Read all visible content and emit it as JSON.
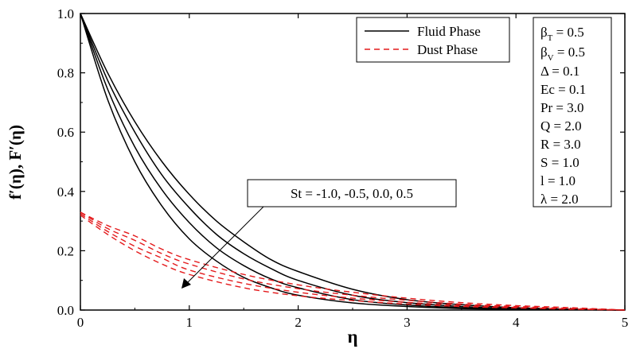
{
  "chart_data": {
    "type": "line",
    "xlabel": "η",
    "ylabel": "f′(η), F′(η)",
    "xlim": [
      0,
      5
    ],
    "ylim": [
      0,
      1.0
    ],
    "x_ticks": [
      "0",
      "1",
      "2",
      "3",
      "4",
      "5"
    ],
    "y_ticks": [
      "0.0",
      "0.2",
      "0.4",
      "0.6",
      "0.8",
      "1.0"
    ],
    "grid": false,
    "legend": {
      "position": "top-right",
      "entries": [
        {
          "label": "Fluid Phase",
          "style": "solid",
          "color": "#000000"
        },
        {
          "label": "Dust Phase",
          "style": "dashed",
          "color": "#e41a1c"
        }
      ]
    },
    "parameters": [
      "β_T = 0.5",
      "β_V = 0.5",
      "Δ = 0.1",
      "Ec = 0.1",
      "Pr = 3.0",
      "Q = 2.0",
      "R = 3.0",
      "S = 1.0",
      "l = 1.0",
      "λ = 2.0"
    ],
    "annotation": {
      "text": "St = -1.0, -0.5, 0.0, 0.5",
      "arrow": "pointing toward decreasing curves"
    },
    "series": [
      {
        "phase": "fluid",
        "x": [
          0,
          0.25,
          0.5,
          0.75,
          1,
          1.25,
          1.5,
          1.75,
          2,
          2.5,
          3,
          3.5,
          4,
          4.5,
          5
        ],
        "y": [
          1.0,
          0.8,
          0.635,
          0.5,
          0.39,
          0.3,
          0.23,
          0.17,
          0.13,
          0.07,
          0.035,
          0.018,
          0.008,
          0.003,
          0.0
        ]
      },
      {
        "phase": "fluid",
        "x": [
          0,
          0.25,
          0.5,
          0.75,
          1,
          1.25,
          1.5,
          1.75,
          2,
          2.5,
          3,
          3.5,
          4,
          4.5,
          5
        ],
        "y": [
          1.0,
          0.775,
          0.6,
          0.455,
          0.345,
          0.255,
          0.19,
          0.14,
          0.1,
          0.05,
          0.025,
          0.012,
          0.005,
          0.002,
          0.0
        ]
      },
      {
        "phase": "fluid",
        "x": [
          0,
          0.25,
          0.5,
          0.75,
          1,
          1.25,
          1.5,
          1.75,
          2,
          2.5,
          3,
          3.5,
          4,
          4.5,
          5
        ],
        "y": [
          1.0,
          0.745,
          0.55,
          0.405,
          0.295,
          0.21,
          0.15,
          0.105,
          0.075,
          0.035,
          0.017,
          0.008,
          0.003,
          0.001,
          0.0
        ]
      },
      {
        "phase": "fluid",
        "x": [
          0,
          0.25,
          0.5,
          0.75,
          1,
          1.25,
          1.5,
          1.75,
          2,
          2.5,
          3,
          3.5,
          4,
          4.5,
          5
        ],
        "y": [
          1.0,
          0.71,
          0.5,
          0.35,
          0.24,
          0.165,
          0.11,
          0.075,
          0.05,
          0.024,
          0.012,
          0.005,
          0.002,
          0.001,
          0.0
        ]
      },
      {
        "phase": "dust",
        "x": [
          0,
          0.25,
          0.5,
          0.75,
          1,
          1.5,
          2,
          2.5,
          3,
          3.5,
          4,
          4.5,
          5
        ],
        "y": [
          0.33,
          0.285,
          0.25,
          0.205,
          0.17,
          0.12,
          0.085,
          0.06,
          0.04,
          0.025,
          0.015,
          0.008,
          0.0
        ]
      },
      {
        "phase": "dust",
        "x": [
          0,
          0.25,
          0.5,
          0.75,
          1,
          1.5,
          2,
          2.5,
          3,
          3.5,
          4,
          4.5,
          5
        ],
        "y": [
          0.33,
          0.275,
          0.235,
          0.19,
          0.155,
          0.105,
          0.072,
          0.05,
          0.033,
          0.02,
          0.012,
          0.006,
          0.0
        ]
      },
      {
        "phase": "dust",
        "x": [
          0,
          0.25,
          0.5,
          0.75,
          1,
          1.5,
          2,
          2.5,
          3,
          3.5,
          4,
          4.5,
          5
        ],
        "y": [
          0.325,
          0.265,
          0.215,
          0.175,
          0.135,
          0.09,
          0.06,
          0.04,
          0.026,
          0.016,
          0.009,
          0.004,
          0.0
        ]
      },
      {
        "phase": "dust",
        "x": [
          0,
          0.25,
          0.5,
          0.75,
          1,
          1.5,
          2,
          2.5,
          3,
          3.5,
          4,
          4.5,
          5
        ],
        "y": [
          0.32,
          0.255,
          0.2,
          0.155,
          0.12,
          0.075,
          0.048,
          0.032,
          0.02,
          0.012,
          0.007,
          0.003,
          0.0
        ]
      }
    ]
  }
}
